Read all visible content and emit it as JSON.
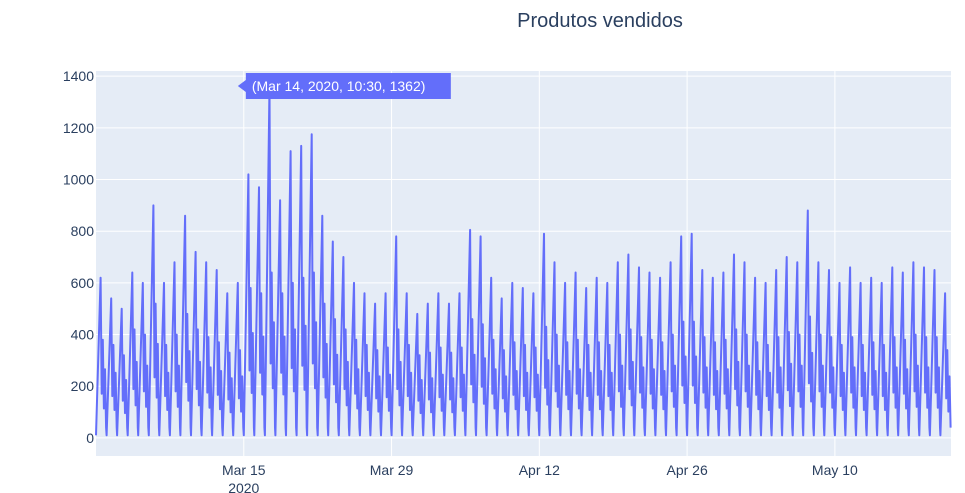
{
  "chart_data": {
    "type": "line",
    "title": "Produtos vendidos",
    "xlabel": "",
    "ylabel": "",
    "x_range": [
      "2020-03-01T00:00",
      "2020-05-21T00:00"
    ],
    "ylim": [
      -70,
      1420
    ],
    "y_ticks": [
      0,
      200,
      400,
      600,
      800,
      1000,
      1200,
      1400
    ],
    "x_ticks": [
      {
        "date": "2020-03-15",
        "label": "Mar 15",
        "sublabel": "2020"
      },
      {
        "date": "2020-03-29",
        "label": "Mar 29",
        "sublabel": ""
      },
      {
        "date": "2020-04-12",
        "label": "Apr 12",
        "sublabel": ""
      },
      {
        "date": "2020-04-26",
        "label": "Apr 26",
        "sublabel": ""
      },
      {
        "date": "2020-05-10",
        "label": "May 10",
        "sublabel": ""
      }
    ],
    "grid": true,
    "colors": {
      "line": "#636efa",
      "plot_bg": "#e5ecf6",
      "grid": "#ffffff",
      "text": "#2a3f5f"
    },
    "series": [
      {
        "daily_peaks": [
          620,
          540,
          500,
          640,
          600,
          900,
          600,
          680,
          860,
          720,
          680,
          650,
          560,
          600,
          1020,
          970,
          1362,
          920,
          1110,
          1130,
          1175,
          860,
          760,
          700,
          600,
          560,
          520,
          560,
          780,
          560,
          480,
          520,
          560,
          520,
          560,
          805,
          780,
          620,
          540,
          600,
          580,
          560,
          790,
          680,
          600,
          640,
          580,
          620,
          600,
          680,
          710,
          660,
          640,
          620,
          680,
          780,
          790,
          650,
          620,
          640,
          710,
          680,
          620,
          600,
          650,
          700,
          680,
          880,
          680,
          650,
          600,
          660,
          600,
          620,
          600,
          660,
          640,
          680,
          660,
          650,
          560
        ],
        "daily_mids": [
          380,
          360,
          320,
          420,
          400,
          520,
          360,
          400,
          480,
          420,
          390,
          370,
          330,
          340,
          580,
          560,
          640,
          560,
          600,
          620,
          640,
          520,
          460,
          420,
          380,
          360,
          340,
          350,
          420,
          360,
          320,
          330,
          350,
          330,
          350,
          460,
          440,
          380,
          340,
          370,
          360,
          350,
          430,
          400,
          370,
          380,
          360,
          370,
          360,
          400,
          420,
          390,
          380,
          370,
          400,
          450,
          450,
          390,
          370,
          380,
          420,
          400,
          370,
          360,
          390,
          410,
          400,
          470,
          400,
          390,
          360,
          390,
          360,
          370,
          360,
          390,
          380,
          400,
          390,
          390,
          340
        ]
      }
    ],
    "hover_point": {
      "x": "2020-03-14T10:30",
      "y": 1362,
      "label": "(Mar 14, 2020, 10:30, 1362)"
    }
  }
}
